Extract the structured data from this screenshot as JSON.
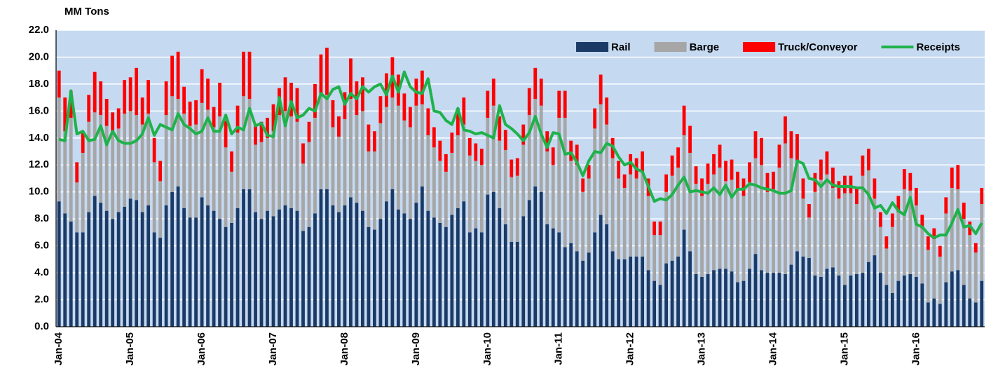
{
  "chart_data": {
    "type": "bar",
    "stacked": true,
    "y_label": "MM Tons",
    "legend": "upper right",
    "grid": true,
    "background": "#c5d9f1",
    "categories": [
      "Jan-04",
      null,
      null,
      null,
      null,
      null,
      null,
      null,
      null,
      null,
      null,
      null,
      "Jan-05",
      null,
      null,
      null,
      null,
      null,
      null,
      null,
      null,
      null,
      null,
      null,
      "Jan-06",
      null,
      null,
      null,
      null,
      null,
      null,
      null,
      null,
      null,
      null,
      null,
      "Jan-07",
      null,
      null,
      null,
      null,
      null,
      null,
      null,
      null,
      null,
      null,
      null,
      "Jan-08",
      null,
      null,
      null,
      null,
      null,
      null,
      null,
      null,
      null,
      null,
      null,
      "Jan-09",
      null,
      null,
      null,
      null,
      null,
      null,
      null,
      null,
      null,
      null,
      null,
      "Jan-10",
      null,
      null,
      null,
      null,
      null,
      null,
      null,
      null,
      null,
      null,
      null,
      "Jan-11",
      null,
      null,
      null,
      null,
      null,
      null,
      null,
      null,
      null,
      null,
      null,
      "Jan-12",
      null,
      null,
      null,
      null,
      null,
      null,
      null,
      null,
      null,
      null,
      null,
      "Jan-13",
      null,
      null,
      null,
      null,
      null,
      null,
      null,
      null,
      null,
      null,
      null,
      "Jan-14",
      null,
      null,
      null,
      null,
      null,
      null,
      null,
      null,
      null,
      null,
      null,
      "Jan-15",
      null,
      null,
      null,
      null,
      null,
      null,
      null,
      null,
      null,
      null,
      null,
      "Jan-16",
      null,
      null,
      null,
      null,
      null,
      null,
      null,
      null,
      null,
      null,
      null
    ],
    "ylim": [
      0,
      22
    ],
    "yticks": [
      {
        "value": 0,
        "label": "0.0"
      },
      {
        "value": 2,
        "label": "2.0"
      },
      {
        "value": 4,
        "label": "4.0"
      },
      {
        "value": 6,
        "label": "6.0"
      },
      {
        "value": 8,
        "label": "8.0"
      },
      {
        "value": 10,
        "label": "10.0"
      },
      {
        "value": 12,
        "label": "12.0"
      },
      {
        "value": 14,
        "label": "14.0"
      },
      {
        "value": 16,
        "label": "16.0"
      },
      {
        "value": 18,
        "label": "18.0"
      },
      {
        "value": 20,
        "label": "20.0"
      },
      {
        "value": 22,
        "label": "22.0"
      }
    ],
    "series": [
      {
        "name": "Rail",
        "type": "bar",
        "color": "#1b3a66",
        "values": [
          9.3,
          8.4,
          7.8,
          7.0,
          7.0,
          8.5,
          9.7,
          9.2,
          8.6,
          8.0,
          8.5,
          8.9,
          9.5,
          9.4,
          8.5,
          9.0,
          7.0,
          6.6,
          9.0,
          10.0,
          10.4,
          8.8,
          8.1,
          8.1,
          9.6,
          9.0,
          8.6,
          8.0,
          7.4,
          7.7,
          8.8,
          10.2,
          10.2,
          8.5,
          8.0,
          8.6,
          8.2,
          8.7,
          9.0,
          8.8,
          8.6,
          7.1,
          7.4,
          8.4,
          10.2,
          10.2,
          9.0,
          8.5,
          9.0,
          9.6,
          9.2,
          8.6,
          7.4,
          7.2,
          8.0,
          9.3,
          10.2,
          8.7,
          8.4,
          8.0,
          9.2,
          10.4,
          8.6,
          8.1,
          7.7,
          7.4,
          8.3,
          8.8,
          9.3,
          7.0,
          7.3,
          7.0,
          9.8,
          10.0,
          8.8,
          7.6,
          6.3,
          6.3,
          8.2,
          9.4,
          10.4,
          10.0,
          7.6,
          7.3,
          7.0,
          5.9,
          6.2,
          5.6,
          4.9,
          5.5,
          7.0,
          8.3,
          7.6,
          5.6,
          5.0,
          5.0,
          5.2,
          5.2,
          5.2,
          4.2,
          3.4,
          3.1,
          4.7,
          4.9,
          5.2,
          7.2,
          5.6,
          3.9,
          3.7,
          3.9,
          4.2,
          4.3,
          4.3,
          4.1,
          3.3,
          3.4,
          4.3,
          5.4,
          4.2,
          4.0,
          4.0,
          4.0,
          3.9,
          4.6,
          5.6,
          5.2,
          5.1,
          3.8,
          3.7,
          4.3,
          4.4,
          3.8,
          3.1,
          3.8,
          3.9,
          4.0,
          4.8,
          5.3,
          4.0,
          3.1,
          2.5,
          3.4,
          3.8,
          3.9,
          3.7,
          3.2,
          1.8,
          2.1,
          1.7,
          3.3,
          4.1,
          4.2,
          3.1,
          2.1,
          1.8,
          3.4
        ]
      },
      {
        "name": "Barge",
        "type": "bar",
        "color": "#a6a6a6",
        "values": [
          7.7,
          6.1,
          7.7,
          3.7,
          5.9,
          6.7,
          6.2,
          6.5,
          6.3,
          6.4,
          6.2,
          6.9,
          6.5,
          6.3,
          6.5,
          6.8,
          5.2,
          4.2,
          6.7,
          7.1,
          6.5,
          7.0,
          6.8,
          6.9,
          7.0,
          7.1,
          6.2,
          7.6,
          5.9,
          3.8,
          5.6,
          6.9,
          6.7,
          5.0,
          5.7,
          5.4,
          6.3,
          7.0,
          7.0,
          6.8,
          6.6,
          5.0,
          6.3,
          7.1,
          7.0,
          7.0,
          5.8,
          5.6,
          6.4,
          7.3,
          6.5,
          7.4,
          5.6,
          5.8,
          7.1,
          7.0,
          6.8,
          7.7,
          6.9,
          6.8,
          7.2,
          6.1,
          5.6,
          5.2,
          4.6,
          4.1,
          4.6,
          5.4,
          5.7,
          5.7,
          5.0,
          5.0,
          5.7,
          6.4,
          5.0,
          5.5,
          4.8,
          4.9,
          5.3,
          6.3,
          6.5,
          6.4,
          5.4,
          4.7,
          8.5,
          9.6,
          6.1,
          6.4,
          5.1,
          5.5,
          7.7,
          8.2,
          7.4,
          6.9,
          6.0,
          5.3,
          6.1,
          5.8,
          6.3,
          5.5,
          3.4,
          3.7,
          5.3,
          6.3,
          6.6,
          7.0,
          7.3,
          6.7,
          6.0,
          6.7,
          7.1,
          7.5,
          6.5,
          6.8,
          6.9,
          6.3,
          6.4,
          7.1,
          7.8,
          6.0,
          6.2,
          7.8,
          9.7,
          7.9,
          6.7,
          4.3,
          3.0,
          6.2,
          7.2,
          7.0,
          5.9,
          5.7,
          6.8,
          6.1,
          5.2,
          7.2,
          6.8,
          4.2,
          3.4,
          2.7,
          4.9,
          5.1,
          6.4,
          6.2,
          5.3,
          4.1,
          3.9,
          4.4,
          3.5,
          5.1,
          6.2,
          6.0,
          4.9,
          4.7,
          3.7,
          5.7
        ]
      },
      {
        "name": "Truck/Conveyor",
        "type": "bar",
        "color": "#ff0000",
        "values": [
          2.0,
          2.5,
          2.0,
          1.5,
          1.5,
          2.0,
          3.0,
          2.5,
          2.0,
          1.5,
          1.5,
          2.5,
          2.5,
          3.5,
          2.0,
          2.5,
          1.8,
          1.5,
          2.5,
          3.0,
          3.5,
          2.0,
          1.8,
          1.8,
          2.5,
          2.3,
          1.5,
          2.5,
          2.0,
          1.5,
          2.0,
          3.3,
          3.5,
          1.5,
          1.5,
          1.5,
          2.0,
          2.0,
          2.5,
          2.5,
          2.5,
          1.5,
          1.5,
          2.5,
          3.0,
          3.5,
          2.0,
          1.5,
          2.0,
          3.0,
          2.5,
          2.5,
          2.0,
          1.5,
          2.0,
          2.5,
          3.0,
          2.3,
          2.0,
          1.5,
          2.0,
          2.5,
          2.0,
          1.5,
          1.5,
          1.3,
          1.5,
          2.0,
          2.0,
          1.3,
          1.3,
          1.2,
          2.0,
          2.0,
          1.8,
          1.5,
          1.3,
          1.3,
          1.5,
          2.0,
          2.3,
          2.0,
          1.5,
          1.3,
          2.0,
          2.0,
          1.5,
          1.5,
          1.0,
          1.0,
          1.5,
          2.2,
          2.0,
          1.5,
          1.3,
          1.0,
          1.5,
          1.5,
          1.5,
          1.3,
          1.0,
          1.0,
          1.3,
          1.5,
          1.5,
          2.2,
          2.0,
          1.3,
          1.3,
          1.5,
          1.5,
          1.7,
          1.5,
          1.5,
          1.3,
          1.3,
          1.5,
          2.0,
          2.0,
          1.4,
          1.3,
          1.7,
          2.0,
          2.0,
          2.0,
          1.5,
          1.0,
          1.4,
          1.5,
          1.7,
          1.5,
          1.3,
          1.3,
          1.3,
          1.2,
          1.5,
          1.6,
          1.5,
          1.1,
          0.9,
          1.0,
          1.2,
          1.5,
          1.3,
          1.3,
          1.0,
          1.0,
          0.8,
          0.8,
          1.2,
          1.5,
          1.8,
          1.2,
          1.0,
          0.7,
          1.2
        ]
      },
      {
        "name": "Receipts",
        "type": "line",
        "color": "#1fb24a",
        "values": [
          13.9,
          13.8,
          17.5,
          14.3,
          14.5,
          13.8,
          13.9,
          14.9,
          13.5,
          14.5,
          13.8,
          13.6,
          13.6,
          13.8,
          14.3,
          15.5,
          14.2,
          15.0,
          14.8,
          14.6,
          15.8,
          15.0,
          14.7,
          14.3,
          14.5,
          15.5,
          14.5,
          14.5,
          15.7,
          14.3,
          14.8,
          14.6,
          16.2,
          14.9,
          15.1,
          14.2,
          14.1,
          17.0,
          14.9,
          16.7,
          15.5,
          15.7,
          16.2,
          16.0,
          17.3,
          16.9,
          17.6,
          17.8,
          16.5,
          17.3,
          16.9,
          17.8,
          17.4,
          17.8,
          18.0,
          17.2,
          18.6,
          17.4,
          18.9,
          17.8,
          17.4,
          17.3,
          18.4,
          16.0,
          15.9,
          15.3,
          15.0,
          16.2,
          14.6,
          14.5,
          14.3,
          14.4,
          14.2,
          14.0,
          16.4,
          15.0,
          14.7,
          14.3,
          13.8,
          14.4,
          15.6,
          14.3,
          13.3,
          14.4,
          14.3,
          12.8,
          12.9,
          12.2,
          11.2,
          12.3,
          13.0,
          12.9,
          13.6,
          13.4,
          12.6,
          12.0,
          12.2,
          11.7,
          11.5,
          10.4,
          9.3,
          9.5,
          9.4,
          9.8,
          10.5,
          11.1,
          10.0,
          10.1,
          10.0,
          9.9,
          10.3,
          9.8,
          10.5,
          9.6,
          10.2,
          10.2,
          10.6,
          10.5,
          10.3,
          10.2,
          10.1,
          9.9,
          9.9,
          10.1,
          12.3,
          12.1,
          11.0,
          10.9,
          10.4,
          10.9,
          10.5,
          10.4,
          10.4,
          10.4,
          10.3,
          10.3,
          9.8,
          8.8,
          9.0,
          8.4,
          9.2,
          8.6,
          8.3,
          9.6,
          7.6,
          7.4,
          6.9,
          6.6,
          6.8,
          6.8,
          7.7,
          8.7,
          7.4,
          7.5,
          6.9,
          7.7
        ]
      }
    ]
  }
}
